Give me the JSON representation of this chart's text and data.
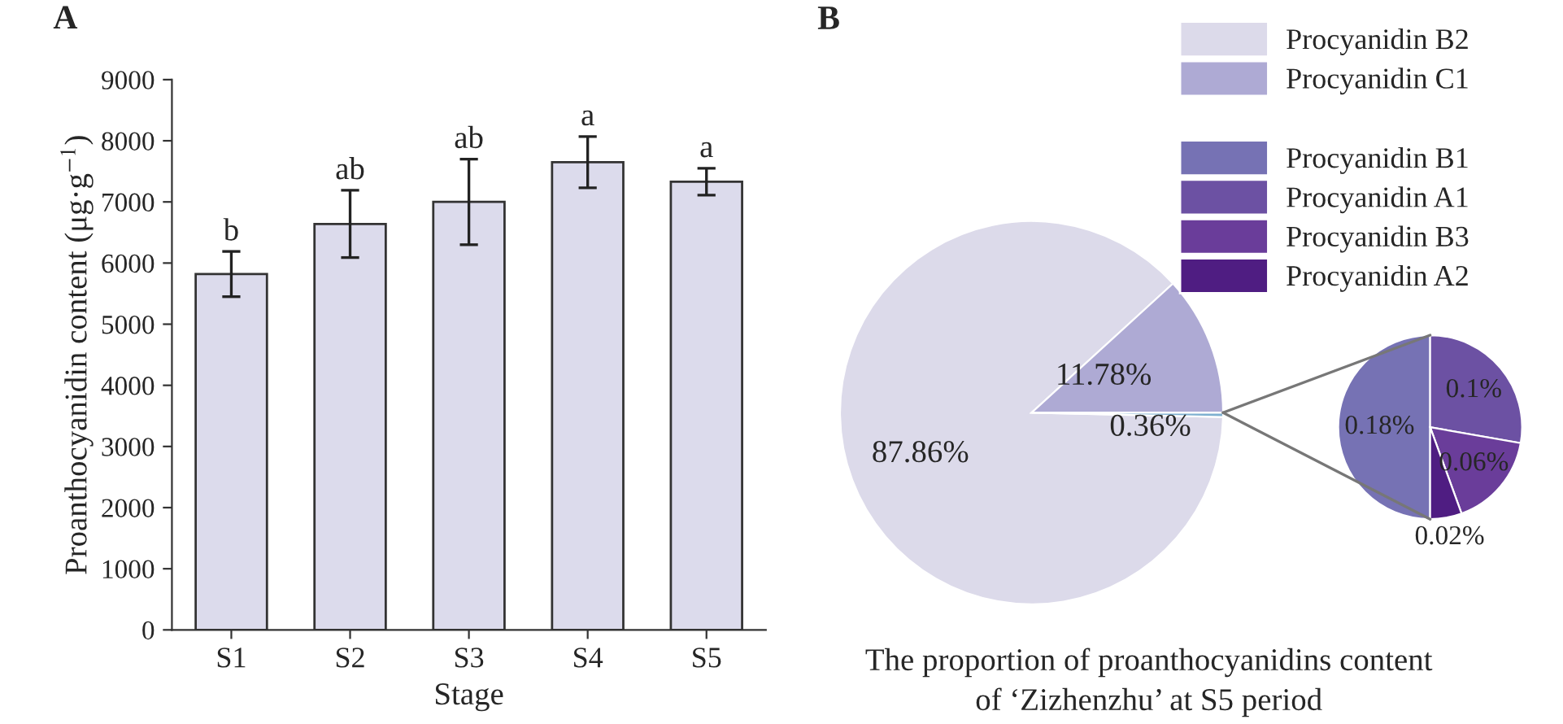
{
  "chart_data": [
    {
      "type": "bar",
      "title": "A",
      "xlabel": "Stage",
      "ylabel": "Proanthocyanidin content (μg·g$^{−1}$)",
      "categories": [
        "S1",
        "S2",
        "S3",
        "S4",
        "S5"
      ],
      "values": [
        5820,
        6640,
        7000,
        7650,
        7330
      ],
      "errors": [
        370,
        550,
        700,
        420,
        220
      ],
      "color": "#dcdbec",
      "ylim": [
        0,
        9000
      ],
      "yticks": [
        0,
        1000,
        2000,
        3000,
        4000,
        5000,
        6000,
        7000,
        8000,
        9000
      ],
      "annotations": [
        "b",
        "ab",
        "ab",
        "a",
        "a"
      ]
    },
    {
      "type": "pie",
      "title": "B",
      "categories": [
        "Procyanidin B2",
        "Procyanidin C1",
        null
      ],
      "values": [
        87.86,
        11.78,
        0.36
      ],
      "colors": [
        "#dcdaea",
        "#aeaad4",
        "#7eb0d0"
      ],
      "value_labels": [
        "87.86%",
        "11.78%",
        "0.36%"
      ],
      "legend": "top right",
      "annotations": [
        "The proportion of proanthocyanidins content",
        "of ‘Zizhenzhu’ at S5 period"
      ]
    },
    {
      "type": "pie",
      "categories": [
        "Procyanidin B1",
        "Procyanidin A1",
        "Procyanidin B3",
        "Procyanidin A2"
      ],
      "values": [
        0.18,
        0.1,
        0.06,
        0.02
      ],
      "colors": [
        "#7672b4",
        "#6c51a3",
        "#6a3d9a",
        "#4f1d82"
      ],
      "value_labels": [
        "0.18%",
        "0.1%",
        "0.06%",
        "0.02%"
      ],
      "legend": "top left"
    }
  ]
}
